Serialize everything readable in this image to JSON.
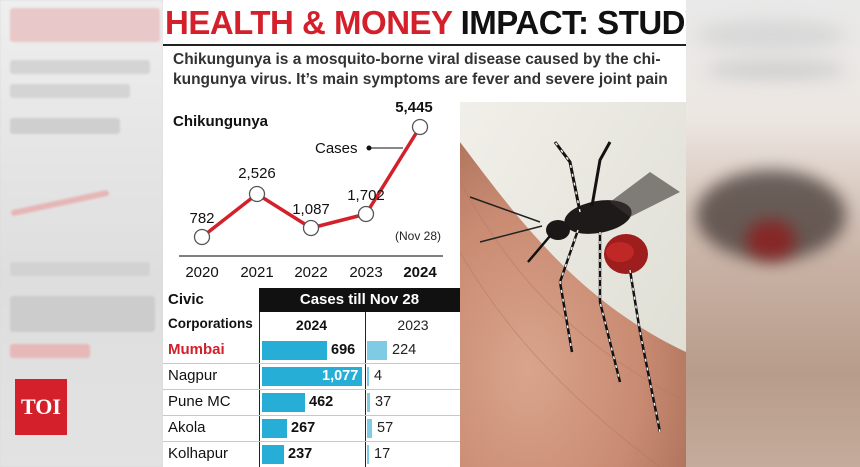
{
  "headline": {
    "part1": "HEALTH & MONEY",
    "part2": "IMPACT: STUDY"
  },
  "intro": {
    "line1": "Chikungunya is a mosquito-borne viral disease caused by the chi-",
    "line2": "kungunya virus. It’s main symptoms are fever and severe joint pain"
  },
  "badge": "TOI",
  "colors": {
    "accent_red": "#d3202a",
    "bar_2024": "#27aed6",
    "bar_2023": "#7fcbe4"
  },
  "chart_data": [
    {
      "type": "line",
      "title": "Chikungunya",
      "series_label": "Cases",
      "annotation": "(Nov 28)",
      "x": [
        "2020",
        "2021",
        "2022",
        "2023",
        "2024"
      ],
      "values": [
        782,
        2526,
        1087,
        1702,
        5445
      ],
      "value_labels": [
        "782",
        "2,526",
        "1,087",
        "1,702",
        "5,445"
      ],
      "grid": false
    },
    {
      "type": "bar",
      "header_left_1": "Civic",
      "header_left_2": "Corporations",
      "header_group": "Cases till Nov 28",
      "series_names": [
        "2024",
        "2023"
      ],
      "categories": [
        "Mumbai",
        "Nagpur",
        "Pune MC",
        "Akola",
        "Kolhapur"
      ],
      "series": [
        {
          "name": "2024",
          "values": [
            696,
            1077,
            462,
            267,
            237
          ],
          "labels": [
            "696",
            "1,077",
            "462",
            "267",
            "237"
          ]
        },
        {
          "name": "2023",
          "values": [
            224,
            4,
            37,
            57,
            17
          ],
          "labels": [
            "224",
            "4",
            "37",
            "57",
            "17"
          ]
        }
      ],
      "highlight": "Mumbai"
    }
  ]
}
